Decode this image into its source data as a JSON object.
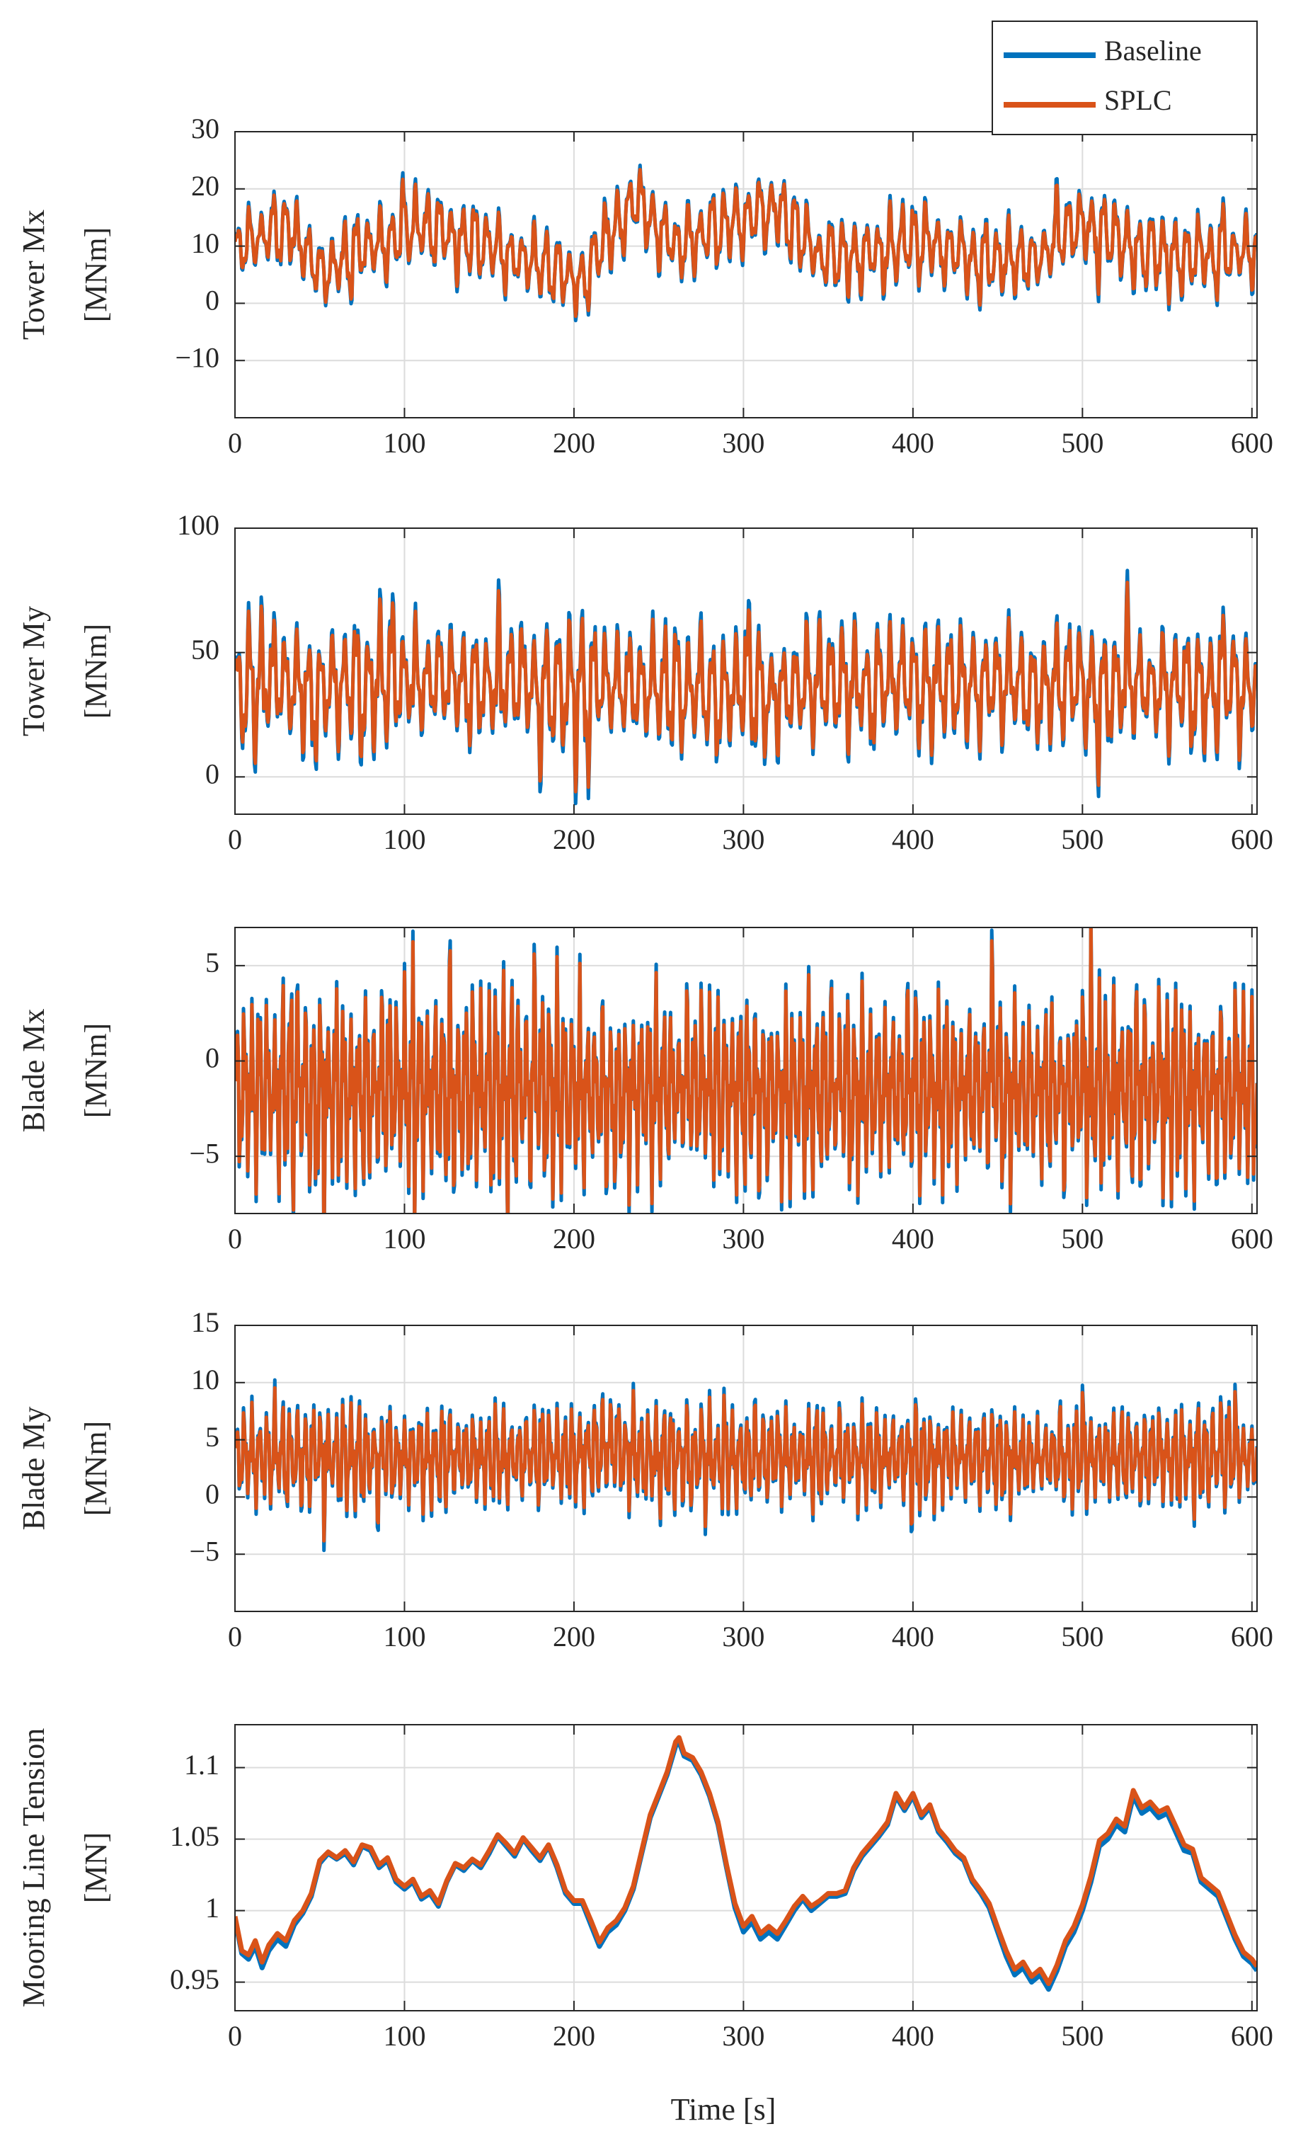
{
  "figure": {
    "legend": {
      "entries": [
        {
          "name": "Baseline",
          "color": "#0072BD"
        },
        {
          "name": "SPLC",
          "color": "#D95319"
        }
      ],
      "placement": "top-right"
    },
    "xlabel": "Time [s]"
  },
  "chart_data": [
    {
      "type": "line",
      "ylabel": [
        "Tower Mx",
        "[MNm]"
      ],
      "xlim": [
        0,
        603
      ],
      "ylim": [
        -20,
        30
      ],
      "xticks": [
        0,
        100,
        200,
        300,
        400,
        500,
        600
      ],
      "yticks": [
        -10,
        0,
        10,
        20,
        30
      ],
      "ytick_labels": [
        "−10",
        "0",
        "10",
        "20",
        "30"
      ],
      "grid": true,
      "signal": {
        "mean": 6,
        "band": 6.5,
        "period": 7,
        "tone": 0.35,
        "seed": 11,
        "knots": [
          [
            0,
            3
          ],
          [
            30,
            8
          ],
          [
            50,
            -1
          ],
          [
            75,
            3
          ],
          [
            110,
            7
          ],
          [
            150,
            4
          ],
          [
            185,
            0
          ],
          [
            205,
            -2
          ],
          [
            235,
            12
          ],
          [
            260,
            4
          ],
          [
            300,
            9
          ],
          [
            320,
            11
          ],
          [
            345,
            2
          ],
          [
            380,
            3
          ],
          [
            410,
            5
          ],
          [
            440,
            1
          ],
          [
            475,
            2
          ],
          [
            500,
            8
          ],
          [
            530,
            4
          ],
          [
            560,
            2
          ],
          [
            603,
            3
          ]
        ]
      },
      "series": [
        {
          "name": "Baseline",
          "color": "#0072BD",
          "gain": 1.08
        },
        {
          "name": "SPLC",
          "color": "#D95319",
          "gain": 0.97
        }
      ]
    },
    {
      "type": "line",
      "ylabel": [
        "Tower My",
        "[MNm]"
      ],
      "xlim": [
        0,
        603
      ],
      "ylim": [
        -15,
        100
      ],
      "xticks": [
        0,
        100,
        200,
        300,
        400,
        500,
        600
      ],
      "yticks": [
        0,
        50,
        100
      ],
      "ytick_labels": [
        "0",
        "50",
        "100"
      ],
      "grid": true,
      "signal": {
        "mean": 36,
        "band": 22,
        "period": 7,
        "tone": 0.45,
        "seed": 23,
        "knots": [
          [
            0,
            0
          ],
          [
            100,
            2
          ],
          [
            200,
            0
          ],
          [
            300,
            -3
          ],
          [
            400,
            2
          ],
          [
            500,
            0
          ],
          [
            603,
            0
          ]
        ]
      },
      "series": [
        {
          "name": "Baseline",
          "color": "#0072BD",
          "gain": 1.08
        },
        {
          "name": "SPLC",
          "color": "#D95319",
          "gain": 0.97
        }
      ]
    },
    {
      "type": "line",
      "ylabel": [
        "Blade Mx",
        "[MNm]"
      ],
      "xlim": [
        0,
        603
      ],
      "ylim": [
        -8,
        7
      ],
      "xticks": [
        0,
        100,
        200,
        300,
        400,
        500,
        600
      ],
      "yticks": [
        -5,
        0,
        5
      ],
      "ytick_labels": [
        "−5",
        "0",
        "5"
      ],
      "grid": true,
      "signal": {
        "mean": -1.5,
        "band": 3.8,
        "period": 4.5,
        "tone": 0.8,
        "seed": 37,
        "knots": [
          [
            0,
            0
          ],
          [
            603,
            0
          ]
        ]
      },
      "series": [
        {
          "name": "Baseline",
          "color": "#0072BD",
          "gain": 1.05
        },
        {
          "name": "SPLC",
          "color": "#D95319",
          "gain": 0.98
        }
      ]
    },
    {
      "type": "line",
      "ylabel": [
        "Blade My",
        "[MNm]"
      ],
      "xlim": [
        0,
        603
      ],
      "ylim": [
        -10,
        15
      ],
      "xticks": [
        0,
        100,
        200,
        300,
        400,
        500,
        600
      ],
      "yticks": [
        -5,
        0,
        5,
        10,
        15
      ],
      "ytick_labels": [
        "−5",
        "0",
        "5",
        "10",
        "15"
      ],
      "grid": true,
      "signal": {
        "mean": 3.5,
        "band": 3.6,
        "period": 4.5,
        "tone": 0.6,
        "seed": 51,
        "knots": [
          [
            0,
            0
          ],
          [
            200,
            0
          ],
          [
            225,
            1
          ],
          [
            240,
            0
          ],
          [
            603,
            0
          ]
        ]
      },
      "series": [
        {
          "name": "Baseline",
          "color": "#0072BD",
          "gain": 1.08
        },
        {
          "name": "SPLC",
          "color": "#D95319",
          "gain": 0.97
        }
      ]
    },
    {
      "type": "line",
      "ylabel": [
        "Mooring Line Tension",
        "[MN]"
      ],
      "xlim": [
        0,
        603
      ],
      "ylim": [
        0.93,
        1.13
      ],
      "xticks": [
        0,
        100,
        200,
        300,
        400,
        500,
        600
      ],
      "yticks": [
        0.95,
        1,
        1.05,
        1.1
      ],
      "ytick_labels": [
        "0.95",
        "1",
        "1.05",
        "1.1"
      ],
      "grid": true,
      "series": [
        {
          "name": "Baseline",
          "color": "#0072BD",
          "x": [
            0,
            4,
            8,
            12,
            16,
            20,
            25,
            30,
            35,
            40,
            45,
            50,
            55,
            60,
            65,
            70,
            75,
            80,
            85,
            90,
            95,
            100,
            105,
            110,
            115,
            120,
            125,
            130,
            135,
            140,
            145,
            150,
            155,
            160,
            165,
            170,
            175,
            180,
            185,
            190,
            195,
            200,
            205,
            210,
            215,
            220,
            225,
            230,
            235,
            240,
            245,
            250,
            255,
            260,
            262,
            265,
            270,
            275,
            280,
            285,
            290,
            295,
            300,
            305,
            310,
            315,
            320,
            325,
            330,
            335,
            340,
            345,
            350,
            355,
            360,
            365,
            370,
            375,
            380,
            385,
            390,
            395,
            400,
            405,
            410,
            415,
            420,
            425,
            430,
            435,
            440,
            445,
            450,
            455,
            460,
            465,
            470,
            475,
            480,
            485,
            490,
            495,
            500,
            505,
            510,
            515,
            520,
            525,
            530,
            535,
            540,
            545,
            550,
            555,
            560,
            565,
            570,
            575,
            580,
            585,
            590,
            595,
            600,
            603
          ],
          "y": [
            0.994,
            0.97,
            0.966,
            0.975,
            0.96,
            0.972,
            0.98,
            0.975,
            0.99,
            0.998,
            1.01,
            1.033,
            1.04,
            1.036,
            1.04,
            1.032,
            1.045,
            1.042,
            1.03,
            1.035,
            1.02,
            1.015,
            1.02,
            1.008,
            1.012,
            1.003,
            1.02,
            1.032,
            1.028,
            1.035,
            1.03,
            1.04,
            1.052,
            1.045,
            1.038,
            1.05,
            1.042,
            1.035,
            1.045,
            1.03,
            1.012,
            1.005,
            1.005,
            0.99,
            0.975,
            0.985,
            0.99,
            1.0,
            1.015,
            1.04,
            1.065,
            1.08,
            1.095,
            1.115,
            1.118,
            1.108,
            1.105,
            1.095,
            1.08,
            1.06,
            1.03,
            1.002,
            0.985,
            0.992,
            0.98,
            0.985,
            0.98,
            0.99,
            1.0,
            1.008,
            1.0,
            1.005,
            1.01,
            1.01,
            1.012,
            1.028,
            1.038,
            1.045,
            1.052,
            1.06,
            1.08,
            1.07,
            1.08,
            1.065,
            1.072,
            1.055,
            1.048,
            1.04,
            1.035,
            1.02,
            1.012,
            1.002,
            0.985,
            0.968,
            0.955,
            0.96,
            0.95,
            0.955,
            0.945,
            0.958,
            0.975,
            0.985,
            1.0,
            1.02,
            1.045,
            1.05,
            1.06,
            1.055,
            1.08,
            1.068,
            1.072,
            1.065,
            1.068,
            1.055,
            1.042,
            1.04,
            1.02,
            1.015,
            1.01,
            0.995,
            0.98,
            0.968,
            0.963,
            0.958
          ]
        },
        {
          "name": "SPLC",
          "color": "#D95319",
          "x": [
            0,
            4,
            8,
            12,
            16,
            20,
            25,
            30,
            35,
            40,
            45,
            50,
            55,
            60,
            65,
            70,
            75,
            80,
            85,
            90,
            95,
            100,
            105,
            110,
            115,
            120,
            125,
            130,
            135,
            140,
            145,
            150,
            155,
            160,
            165,
            170,
            175,
            180,
            185,
            190,
            195,
            200,
            205,
            210,
            215,
            220,
            225,
            230,
            235,
            240,
            245,
            250,
            255,
            260,
            262,
            265,
            270,
            275,
            280,
            285,
            290,
            295,
            300,
            305,
            310,
            315,
            320,
            325,
            330,
            335,
            340,
            345,
            350,
            355,
            360,
            365,
            370,
            375,
            380,
            385,
            390,
            395,
            400,
            405,
            410,
            415,
            420,
            425,
            430,
            435,
            440,
            445,
            450,
            455,
            460,
            465,
            470,
            475,
            480,
            485,
            490,
            495,
            500,
            505,
            510,
            515,
            520,
            525,
            530,
            535,
            540,
            545,
            550,
            555,
            560,
            565,
            570,
            575,
            580,
            585,
            590,
            595,
            600,
            603
          ],
          "y": [
            0.996,
            0.972,
            0.969,
            0.979,
            0.964,
            0.976,
            0.984,
            0.979,
            0.993,
            1.0,
            1.012,
            1.035,
            1.041,
            1.037,
            1.042,
            1.034,
            1.046,
            1.044,
            1.032,
            1.037,
            1.022,
            1.017,
            1.022,
            1.01,
            1.014,
            1.005,
            1.021,
            1.033,
            1.03,
            1.036,
            1.032,
            1.042,
            1.053,
            1.047,
            1.04,
            1.051,
            1.044,
            1.037,
            1.046,
            1.032,
            1.014,
            1.007,
            1.007,
            0.993,
            0.978,
            0.988,
            0.993,
            1.002,
            1.017,
            1.042,
            1.067,
            1.082,
            1.097,
            1.118,
            1.121,
            1.11,
            1.107,
            1.097,
            1.082,
            1.062,
            1.032,
            1.005,
            0.989,
            0.996,
            0.984,
            0.989,
            0.984,
            0.993,
            1.003,
            1.01,
            1.003,
            1.007,
            1.012,
            1.012,
            1.014,
            1.03,
            1.04,
            1.047,
            1.054,
            1.062,
            1.082,
            1.072,
            1.082,
            1.067,
            1.074,
            1.057,
            1.05,
            1.042,
            1.037,
            1.022,
            1.014,
            1.005,
            0.988,
            0.972,
            0.959,
            0.964,
            0.954,
            0.959,
            0.949,
            0.962,
            0.979,
            0.989,
            1.004,
            1.024,
            1.049,
            1.054,
            1.064,
            1.059,
            1.084,
            1.072,
            1.076,
            1.069,
            1.072,
            1.059,
            1.046,
            1.043,
            1.023,
            1.018,
            1.013,
            0.998,
            0.983,
            0.971,
            0.966,
            0.961
          ]
        }
      ]
    }
  ]
}
